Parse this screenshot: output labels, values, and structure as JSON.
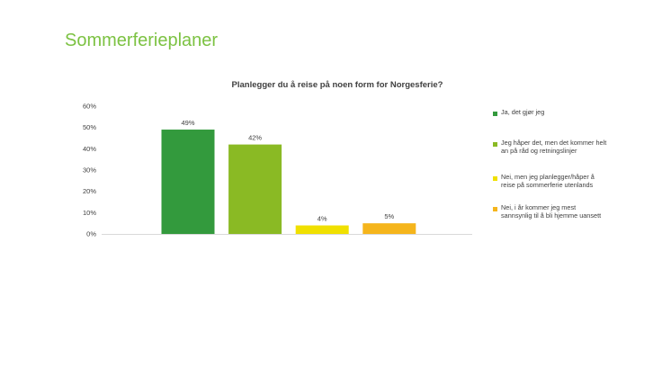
{
  "slide": {
    "title": "Sommerferieplaner"
  },
  "chart_data": {
    "type": "bar",
    "title": "Planlegger du å reise på noen form for Norgesferie?",
    "xlabel": "",
    "ylabel": "",
    "ylim": [
      0,
      60
    ],
    "y_ticks": [
      0,
      10,
      20,
      30,
      40,
      50,
      60
    ],
    "y_tick_labels": [
      "0%",
      "10%",
      "20%",
      "30%",
      "40%",
      "50%",
      "60%"
    ],
    "grid": false,
    "legend_position": "right",
    "categories": [
      "Ja, det gjør jeg",
      "Jeg håper det, men det kommer helt an på  råd og retningslinjer",
      "Nei, men jeg planlegger/håper å reise på sommerferie utenlands",
      "Nei, i år kommer jeg mest sannsynlig til å bli hjemme uansett"
    ],
    "values": [
      49,
      42,
      4,
      5
    ],
    "data_labels": [
      "49%",
      "42%",
      "4%",
      "5%"
    ],
    "colors": [
      "#339a3d",
      "#8aba24",
      "#f0e000",
      "#f5b51c"
    ]
  }
}
